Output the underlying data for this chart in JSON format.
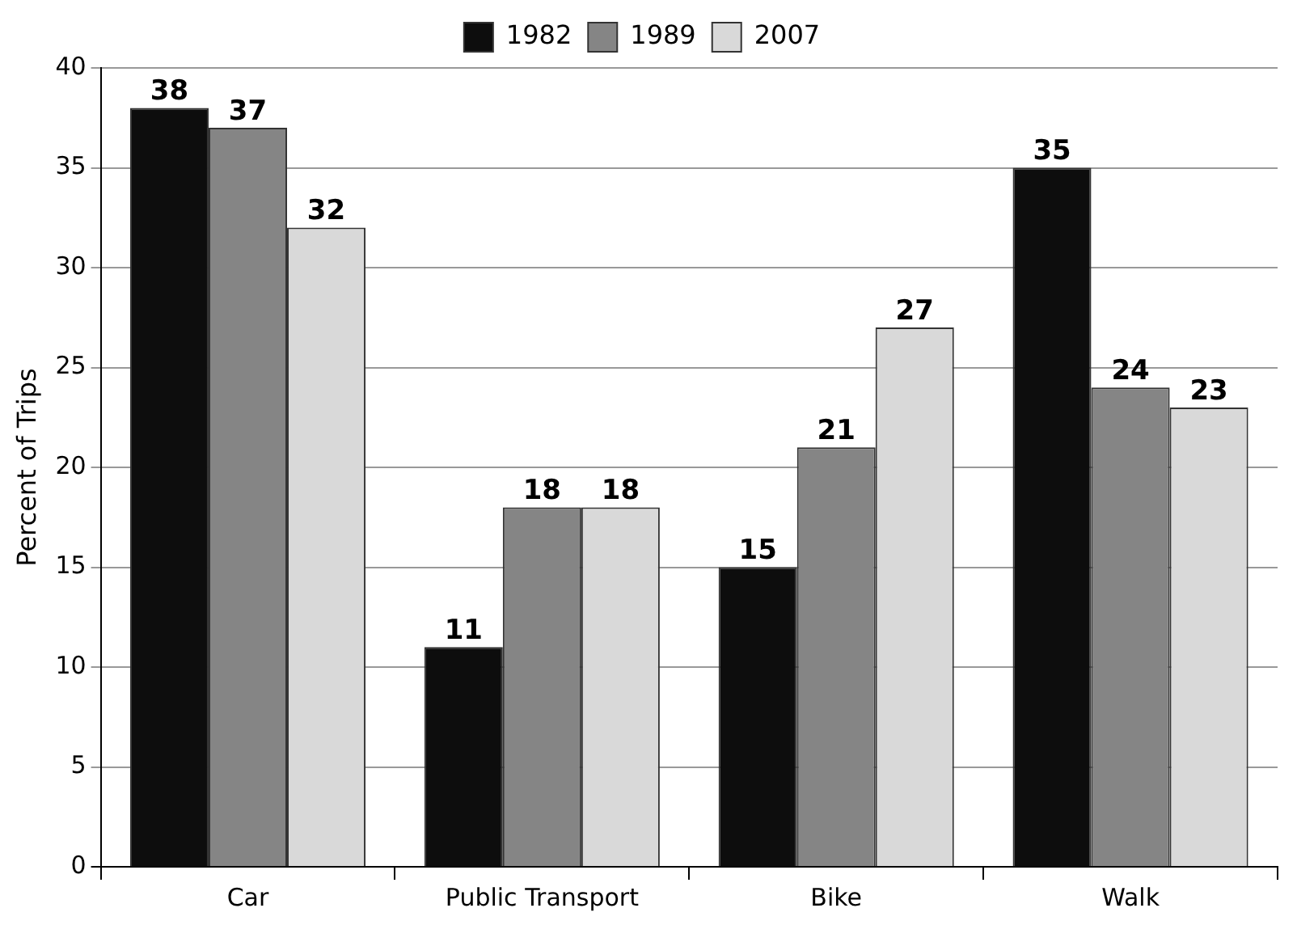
{
  "chart_data": {
    "type": "bar",
    "ylabel": "Percent of Trips",
    "categories": [
      "Car",
      "Public Transport",
      "Bike",
      "Walk"
    ],
    "series": [
      {
        "name": "1982",
        "color": "#0d0d0d",
        "values": [
          38,
          11,
          15,
          35
        ]
      },
      {
        "name": "1989",
        "color": "#858585",
        "values": [
          37,
          18,
          21,
          24
        ]
      },
      {
        "name": "2007",
        "color": "#d9d9d9",
        "values": [
          32,
          18,
          27,
          23
        ]
      }
    ],
    "ylim": [
      0,
      40
    ],
    "yticks": [
      0,
      5,
      10,
      15,
      20,
      25,
      30,
      35,
      40
    ],
    "grid": "y",
    "legend": "top",
    "data_labels": true
  }
}
